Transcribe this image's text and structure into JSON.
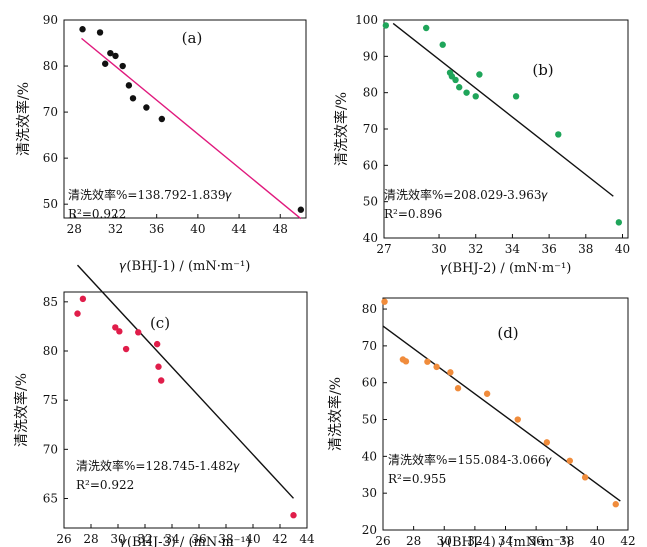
{
  "chart_data": [
    {
      "type": "scatter",
      "panel_label": "(a)",
      "xlabel": "𝛾(BHJ-1) / (mN·m⁻¹)",
      "ylabel": "清洗效率/%",
      "xticks": [
        "28",
        "32",
        "36",
        "40",
        "44",
        "48"
      ],
      "yticks": [
        "50",
        "60",
        "70",
        "80",
        "90"
      ],
      "xlim": [
        27,
        50.5
      ],
      "ylim": [
        47,
        90
      ],
      "equation": "清洗效率%=138.792-1.839𝛾",
      "r2": "R²=0.922",
      "point_color": "#111111",
      "line_color": "#e0197d",
      "fit": {
        "intercept": 138.792,
        "slope": -1.839,
        "x_range": [
          28.7,
          50.0
        ]
      },
      "series": [
        {
          "x": [
            28.8,
            30.5,
            31.0,
            31.5,
            32.0,
            32.7,
            33.3,
            33.7,
            35.0,
            36.5,
            50.0
          ],
          "y": [
            88.0,
            87.3,
            80.5,
            82.8,
            82.2,
            80.0,
            75.8,
            73.0,
            71.0,
            68.5,
            48.8
          ]
        }
      ]
    },
    {
      "type": "scatter",
      "panel_label": "(b)",
      "xlabel": "𝛾(BHJ-2) / (mN·m⁻¹)",
      "ylabel": "清洗效率/%",
      "xticks": [
        "27",
        "30",
        "32",
        "34",
        "36",
        "38",
        "40"
      ],
      "yticks": [
        "40",
        "50",
        "60",
        "70",
        "80",
        "90",
        "100"
      ],
      "xlim": [
        27,
        40.3
      ],
      "ylim": [
        40,
        100
      ],
      "equation": "清洗效率%=208.029-3.963𝛾",
      "r2": "R²=0.896",
      "point_color": "#1fa55a",
      "line_color": "#111111",
      "fit": {
        "intercept": 208.029,
        "slope": -3.963,
        "x_range": [
          27.5,
          39.5
        ]
      },
      "series": [
        {
          "x": [
            27.1,
            29.3,
            30.2,
            30.6,
            30.7,
            30.9,
            31.1,
            31.5,
            32.0,
            32.2,
            34.2,
            36.5,
            39.8
          ],
          "y": [
            98.5,
            97.8,
            93.2,
            85.5,
            84.5,
            83.5,
            81.5,
            80.0,
            79.0,
            85.0,
            79.0,
            68.5,
            44.3
          ]
        }
      ]
    },
    {
      "type": "scatter",
      "panel_label": "(c)",
      "xlabel": "𝛾(BHJ-3) / (mN·m⁻¹)",
      "ylabel": "清洗效率/%",
      "xticks": [
        "26",
        "28",
        "30",
        "32",
        "34",
        "36",
        "38",
        "40",
        "42",
        "44"
      ],
      "yticks": [
        "65",
        "70",
        "75",
        "80",
        "85"
      ],
      "xlim": [
        26,
        44
      ],
      "ylim": [
        62,
        86
      ],
      "equation": "清洗效率%=128.745-1.482𝛾",
      "r2": "R²=0.922",
      "point_color": "#e01d4a",
      "line_color": "#111111",
      "fit": {
        "intercept": 128.745,
        "slope": -1.482,
        "x_range": [
          27.0,
          43.0
        ]
      },
      "series": [
        {
          "x": [
            27.0,
            27.4,
            29.8,
            30.1,
            30.6,
            31.5,
            32.9,
            33.0,
            33.2,
            43.0
          ],
          "y": [
            83.8,
            85.3,
            82.4,
            82.0,
            80.2,
            81.9,
            80.7,
            78.4,
            77.0,
            63.3
          ]
        }
      ]
    },
    {
      "type": "scatter",
      "panel_label": "(d)",
      "xlabel": "𝛾(BHJ-4) / (mN·m⁻¹)",
      "ylabel": "清洗效率/%",
      "xticks": [
        "26",
        "28",
        "30",
        "32",
        "34",
        "36",
        "38",
        "40",
        "42"
      ],
      "yticks": [
        "20",
        "30",
        "40",
        "50",
        "60",
        "70",
        "80"
      ],
      "xlim": [
        26,
        42
      ],
      "ylim": [
        20,
        83
      ],
      "equation": "清洗效率%=155.084-3.066𝛾",
      "r2": "R²=0.955",
      "point_color": "#f08c3c",
      "line_color": "#111111",
      "fit": {
        "intercept": 155.084,
        "slope": -3.066,
        "x_range": [
          26.0,
          41.5
        ]
      },
      "series": [
        {
          "x": [
            26.1,
            27.3,
            27.5,
            28.9,
            29.5,
            30.4,
            30.9,
            32.8,
            34.8,
            36.7,
            38.2,
            39.2,
            41.2
          ],
          "y": [
            82.0,
            66.3,
            65.8,
            65.7,
            64.3,
            62.8,
            58.5,
            57.0,
            50.0,
            43.8,
            38.8,
            34.3,
            27.0
          ]
        }
      ]
    }
  ]
}
